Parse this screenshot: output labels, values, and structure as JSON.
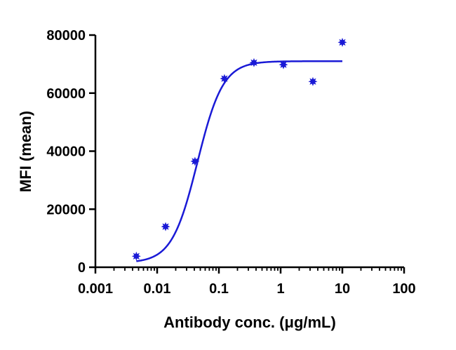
{
  "chart_data": {
    "type": "scatter",
    "title": "",
    "xlabel": "Antibody conc. (μg/mL)",
    "ylabel": "MFI (mean)",
    "xscale": "log",
    "xlim": [
      0.001,
      100
    ],
    "ylim": [
      0,
      80000
    ],
    "x_ticks": [
      0.001,
      0.01,
      0.1,
      1,
      10,
      100
    ],
    "x_tick_labels": [
      "0.001",
      "0.01",
      "0.1",
      "1",
      "10",
      "100"
    ],
    "y_ticks": [
      0,
      20000,
      40000,
      60000,
      80000
    ],
    "y_tick_labels": [
      "0",
      "20000",
      "40000",
      "60000",
      "80000"
    ],
    "grid": false,
    "legend": "none",
    "series": [
      {
        "kind": "points",
        "marker": "star",
        "color": "#1a1ad6",
        "x": [
          0.0046,
          0.0137,
          0.041,
          0.123,
          0.37,
          1.11,
          3.33,
          10.0
        ],
        "y": [
          3800,
          14000,
          36500,
          65000,
          70500,
          69800,
          64000,
          77500
        ]
      },
      {
        "kind": "fit",
        "model": "4PL",
        "color": "#1a1ad6",
        "bottom": 1500,
        "top": 71000,
        "ec50": 0.045,
        "hill": 2.1,
        "x_range": [
          0.0046,
          10.0
        ]
      }
    ]
  }
}
